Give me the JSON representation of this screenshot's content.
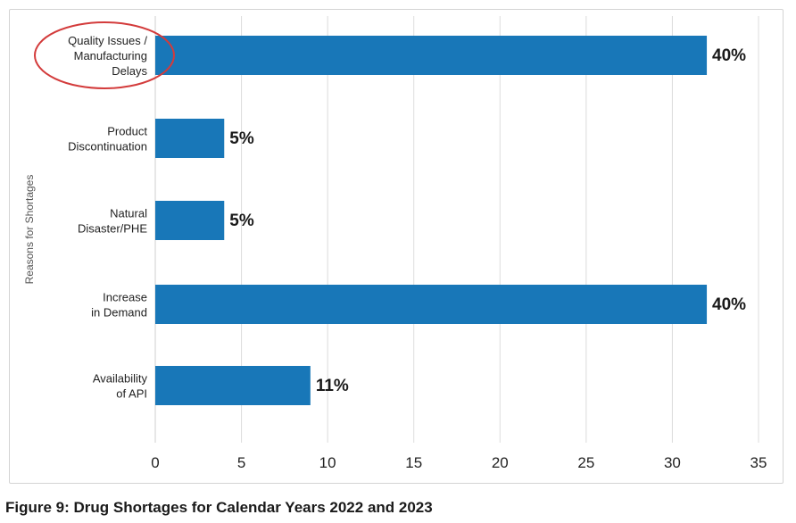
{
  "chart_data": {
    "type": "bar",
    "orientation": "horizontal",
    "ylabel": "Reasons for Shortages",
    "xlabel": "",
    "xlim": [
      0,
      35
    ],
    "xticks": [
      0,
      5,
      10,
      15,
      20,
      25,
      30,
      35
    ],
    "grid": true,
    "categories": [
      [
        "Quality Issues /",
        "Manufacturing",
        "Delays"
      ],
      [
        "Product",
        "Discontinuation"
      ],
      [
        "Natural",
        "Disaster/PHE"
      ],
      [
        "Increase",
        "in Demand"
      ],
      [
        "Availability",
        "of API"
      ]
    ],
    "values": [
      32,
      4,
      4,
      32,
      9
    ],
    "data_labels": [
      "40%",
      "5%",
      "5%",
      "40%",
      "11%"
    ],
    "bar_color": "#1877b8",
    "highlight_color": "#d33b3b",
    "highlighted_category_index": 0
  },
  "caption": "Figure 9: Drug Shortages for Calendar Years 2022 and 2023"
}
